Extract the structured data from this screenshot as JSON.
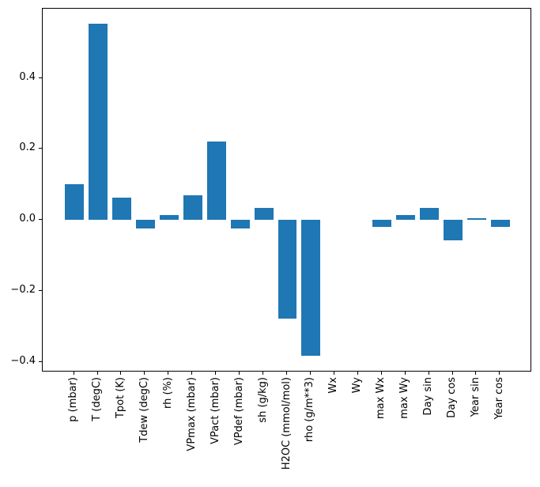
{
  "chart_data": {
    "type": "bar",
    "title": "",
    "xlabel": "",
    "ylabel": "",
    "categories": [
      "p (mbar)",
      "T (degC)",
      "Tpot (K)",
      "Tdew (degC)",
      "rh (%)",
      "VPmax (mbar)",
      "VPact (mbar)",
      "VPdef (mbar)",
      "sh (g/kg)",
      "H2OC (mmol/mol)",
      "rho (g/m**3)",
      "Wx",
      "Wy",
      "max Wx",
      "max Wy",
      "Day sin",
      "Day cos",
      "Year sin",
      "Year cos"
    ],
    "values": [
      0.1,
      0.553,
      0.064,
      -0.023,
      0.014,
      0.07,
      0.222,
      -0.024,
      0.034,
      -0.278,
      -0.383,
      0.0,
      0.0,
      -0.019,
      0.015,
      0.033,
      -0.058,
      0.004,
      -0.019
    ],
    "yticks": [
      -0.4,
      -0.2,
      0.0,
      0.2,
      0.4
    ],
    "ytick_labels": [
      "−0.4",
      "−0.2",
      "0.0",
      "0.2",
      "0.4"
    ],
    "ylim": [
      -0.429,
      0.595
    ],
    "xlim": [
      -1.34,
      19.34
    ],
    "bar_width": 0.8,
    "bar_color": "#1f77b4",
    "grid": false,
    "legend": null,
    "background_color": "#ffffff",
    "spine_color": "#000000",
    "text_color": "#000000"
  }
}
